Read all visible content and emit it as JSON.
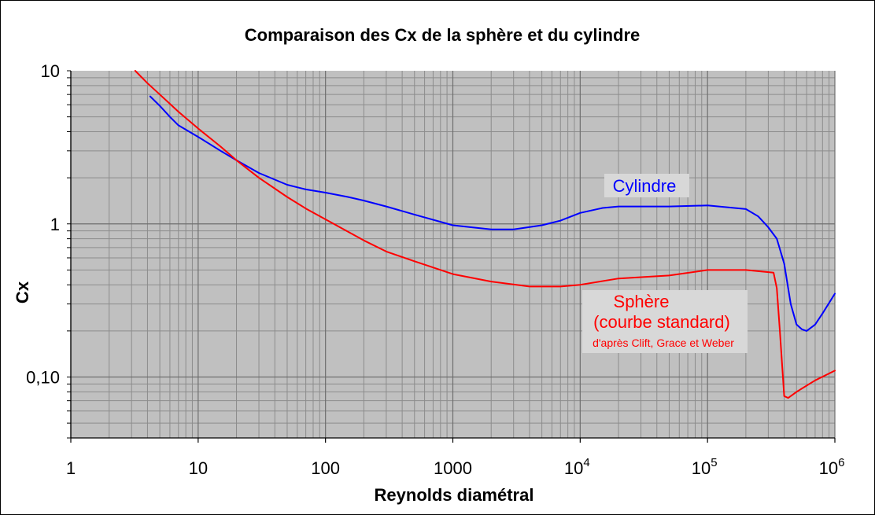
{
  "chart_data": {
    "type": "line",
    "title": "Comparaison des Cx de la sphère et du cylindre",
    "xlabel": "Reynolds diamétral",
    "ylabel": "Cx",
    "x_scale": "log",
    "y_scale": "log",
    "xlim": [
      1,
      1000000
    ],
    "ylim": [
      0.04,
      10
    ],
    "grid": true,
    "plot_background": "#c0c0c0",
    "x_tick_labels": [
      {
        "value": 1,
        "base": "1",
        "exp": ""
      },
      {
        "value": 10,
        "base": "10",
        "exp": ""
      },
      {
        "value": 100,
        "base": "100",
        "exp": ""
      },
      {
        "value": 1000,
        "base": "1000",
        "exp": ""
      },
      {
        "value": 10000,
        "base": "10",
        "exp": "4"
      },
      {
        "value": 100000,
        "base": "10",
        "exp": "5"
      },
      {
        "value": 1000000,
        "base": "10",
        "exp": "6"
      }
    ],
    "y_tick_labels": [
      {
        "value": 10,
        "label": "10"
      },
      {
        "value": 1,
        "label": "1"
      },
      {
        "value": 0.1,
        "label": "0,10"
      }
    ],
    "series": [
      {
        "name": "Cylindre",
        "color": "#0000ff",
        "x": [
          4.2,
          5,
          6,
          7,
          10,
          15,
          20,
          30,
          50,
          70,
          100,
          150,
          200,
          300,
          500,
          1000,
          2000,
          3000,
          5000,
          7000,
          10000,
          15000,
          20000,
          30000,
          50000,
          100000,
          200000,
          250000,
          300000,
          350000,
          400000,
          450000,
          500000,
          550000,
          600000,
          700000,
          800000,
          1000000
        ],
        "y": [
          6.8,
          5.9,
          5.0,
          4.4,
          3.7,
          3.0,
          2.6,
          2.15,
          1.8,
          1.68,
          1.6,
          1.5,
          1.42,
          1.3,
          1.15,
          0.98,
          0.92,
          0.92,
          0.98,
          1.05,
          1.18,
          1.27,
          1.3,
          1.3,
          1.3,
          1.32,
          1.25,
          1.12,
          0.95,
          0.8,
          0.55,
          0.3,
          0.22,
          0.205,
          0.2,
          0.22,
          0.26,
          0.35
        ]
      },
      {
        "name": "Sphère",
        "color": "#ff0000",
        "x": [
          3.2,
          4,
          5,
          7,
          10,
          15,
          20,
          30,
          50,
          70,
          100,
          200,
          300,
          500,
          1000,
          2000,
          4000,
          7000,
          10000,
          20000,
          50000,
          100000,
          200000,
          330000,
          350000,
          370000,
          400000,
          430000,
          500000,
          700000,
          1000000
        ],
        "y": [
          10,
          8.3,
          7.0,
          5.4,
          4.2,
          3.2,
          2.6,
          2.0,
          1.5,
          1.26,
          1.07,
          0.78,
          0.66,
          0.57,
          0.47,
          0.42,
          0.39,
          0.39,
          0.4,
          0.44,
          0.46,
          0.5,
          0.5,
          0.48,
          0.38,
          0.2,
          0.075,
          0.073,
          0.08,
          0.095,
          0.11
        ]
      }
    ],
    "annotations": [
      {
        "text": "Cylindre",
        "color": "#0000ff"
      },
      {
        "text": "Sphère",
        "color": "#ff0000"
      },
      {
        "text": "(courbe standard)",
        "color": "#ff0000"
      },
      {
        "text": "d'après Clift, Grace et Weber",
        "color": "#ff0000"
      }
    ]
  }
}
